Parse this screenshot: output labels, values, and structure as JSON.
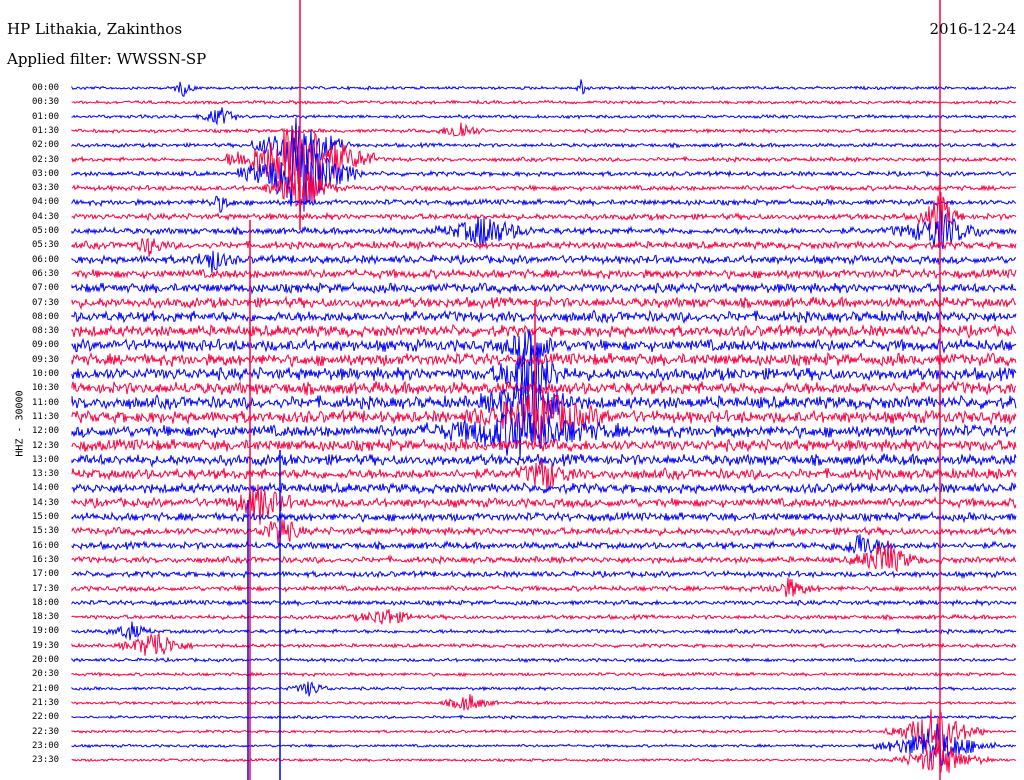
{
  "header": {
    "station": "HP Lithakia, Zakinthos",
    "date": "2016-12-24",
    "filter": "Applied filter: WWSSN-SP",
    "channel": "HHZ - 30000"
  },
  "rows": [
    {
      "time": "00:00",
      "color": "#0000ff"
    },
    {
      "time": "00:30",
      "color": "#ff0040"
    },
    {
      "time": "01:00",
      "color": "#0000ff"
    },
    {
      "time": "01:30",
      "color": "#ff0040"
    },
    {
      "time": "02:00",
      "color": "#0000ff"
    },
    {
      "time": "02:30",
      "color": "#ff0040"
    },
    {
      "time": "03:00",
      "color": "#0000ff"
    },
    {
      "time": "03:30",
      "color": "#ff0040"
    },
    {
      "time": "04:00",
      "color": "#0000ff"
    },
    {
      "time": "04:30",
      "color": "#ff0040"
    },
    {
      "time": "05:00",
      "color": "#0000ff"
    },
    {
      "time": "05:30",
      "color": "#ff0040"
    },
    {
      "time": "06:00",
      "color": "#0000ff"
    },
    {
      "time": "06:30",
      "color": "#ff0040"
    },
    {
      "time": "07:00",
      "color": "#0000ff"
    },
    {
      "time": "07:30",
      "color": "#ff0040"
    },
    {
      "time": "08:00",
      "color": "#0000ff"
    },
    {
      "time": "08:30",
      "color": "#ff0040"
    },
    {
      "time": "09:00",
      "color": "#0000ff"
    },
    {
      "time": "09:30",
      "color": "#ff0040"
    },
    {
      "time": "10:00",
      "color": "#0000ff"
    },
    {
      "time": "10:30",
      "color": "#ff0040"
    },
    {
      "time": "11:00",
      "color": "#0000ff"
    },
    {
      "time": "11:30",
      "color": "#ff0040"
    },
    {
      "time": "12:00",
      "color": "#0000ff"
    },
    {
      "time": "12:30",
      "color": "#ff0040"
    },
    {
      "time": "13:00",
      "color": "#0000ff"
    },
    {
      "time": "13:30",
      "color": "#ff0040"
    },
    {
      "time": "14:00",
      "color": "#0000ff"
    },
    {
      "time": "14:30",
      "color": "#ff0040"
    },
    {
      "time": "15:00",
      "color": "#0000ff"
    },
    {
      "time": "15:30",
      "color": "#ff0040"
    },
    {
      "time": "16:00",
      "color": "#0000ff"
    },
    {
      "time": "16:30",
      "color": "#ff0040"
    },
    {
      "time": "17:00",
      "color": "#0000ff"
    },
    {
      "time": "17:30",
      "color": "#ff0040"
    },
    {
      "time": "18:00",
      "color": "#0000ff"
    },
    {
      "time": "18:30",
      "color": "#ff0040"
    },
    {
      "time": "19:00",
      "color": "#0000ff"
    },
    {
      "time": "19:30",
      "color": "#ff0040"
    },
    {
      "time": "20:00",
      "color": "#0000ff"
    },
    {
      "time": "20:30",
      "color": "#ff0040"
    },
    {
      "time": "21:00",
      "color": "#0000ff"
    },
    {
      "time": "21:30",
      "color": "#ff0040"
    },
    {
      "time": "22:00",
      "color": "#0000ff"
    },
    {
      "time": "22:30",
      "color": "#ff0040"
    },
    {
      "time": "23:00",
      "color": "#0000ff"
    },
    {
      "time": "23:30",
      "color": "#ff0040"
    }
  ]
}
